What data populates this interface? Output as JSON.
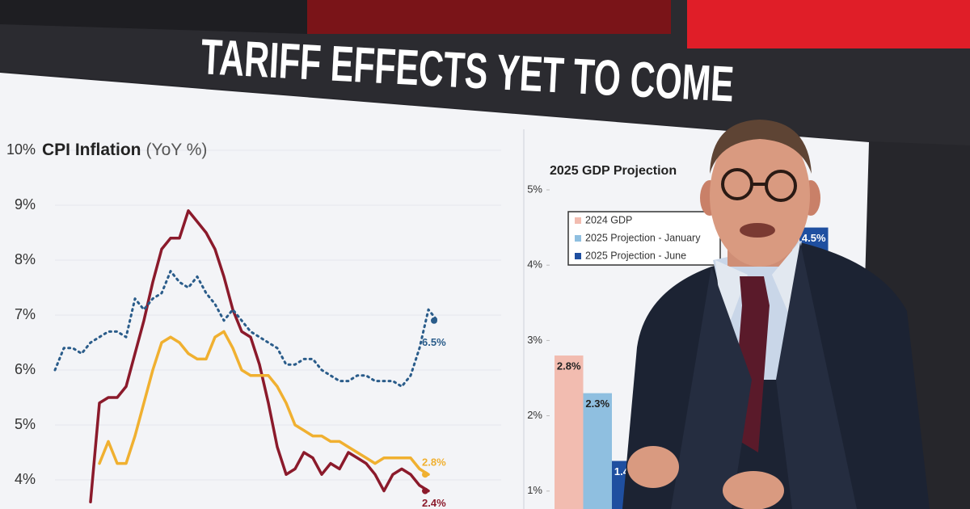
{
  "headline": "TARIFF EFFECTS YET TO COME",
  "chart_data": [
    {
      "type": "line",
      "title": "CPI Inflation",
      "subtitle": "(YoY %)",
      "categories": [
        null,
        null,
        null,
        null,
        null,
        null,
        null,
        null,
        null,
        null,
        null,
        null,
        null,
        null,
        null,
        null,
        null,
        null,
        null,
        null,
        null,
        null,
        null,
        null,
        null,
        null,
        null,
        null,
        null,
        null,
        null,
        null,
        null,
        null,
        null,
        null,
        null,
        null,
        null,
        null,
        null,
        null,
        null,
        null
      ],
      "series": [
        {
          "color": "#8b1a2b",
          "style": "solid",
          "values": [
            null,
            null,
            null,
            null,
            3.6,
            5.4,
            5.5,
            5.5,
            5.7,
            6.3,
            6.9,
            7.6,
            8.2,
            8.4,
            8.4,
            8.9,
            8.7,
            8.5,
            8.2,
            7.7,
            7.1,
            6.7,
            6.6,
            6.1,
            5.4,
            4.6,
            4.1,
            4.2,
            4.5,
            4.4,
            4.1,
            4.3,
            4.2,
            4.5,
            4.4,
            4.3,
            4.1,
            3.8,
            4.1,
            4.2,
            4.1,
            3.9,
            3.8,
            null
          ]
        },
        {
          "color": "#f0b030",
          "style": "solid",
          "values": [
            null,
            null,
            null,
            null,
            null,
            4.3,
            4.7,
            4.3,
            4.3,
            4.8,
            5.4,
            6.0,
            6.5,
            6.6,
            6.5,
            6.3,
            6.2,
            6.2,
            6.6,
            6.7,
            6.4,
            6.0,
            5.9,
            5.9,
            5.9,
            5.7,
            5.4,
            5.0,
            4.9,
            4.8,
            4.8,
            4.7,
            4.7,
            4.6,
            4.5,
            4.4,
            4.3,
            4.4,
            4.4,
            4.4,
            4.4,
            4.2,
            4.1,
            null
          ]
        },
        {
          "color": "#2a5c8a",
          "style": "dotted",
          "values": [
            6.0,
            6.4,
            6.4,
            6.3,
            6.5,
            6.6,
            6.7,
            6.7,
            6.6,
            7.3,
            7.1,
            7.3,
            7.4,
            7.8,
            7.6,
            7.5,
            7.7,
            7.4,
            7.2,
            6.9,
            7.1,
            6.9,
            6.7,
            6.6,
            6.5,
            6.4,
            6.1,
            6.1,
            6.2,
            6.2,
            6.0,
            5.9,
            5.8,
            5.8,
            5.9,
            5.9,
            5.8,
            5.8,
            5.8,
            5.7,
            5.9,
            6.4,
            7.1,
            6.9
          ]
        }
      ],
      "annotations": [
        {
          "text": "6.5%",
          "color": "#2a5c8a"
        },
        {
          "text": "2.8%",
          "color": "#f0b030"
        },
        {
          "text": "2.4%",
          "color": "#8b1a2b"
        }
      ],
      "ylim": [
        3.5,
        10.5
      ],
      "yticks": [
        {
          "value": 4,
          "label": "4%"
        },
        {
          "value": 5,
          "label": "5%"
        },
        {
          "value": 6,
          "label": "6%"
        },
        {
          "value": 7,
          "label": "7%"
        },
        {
          "value": 8,
          "label": "8%"
        },
        {
          "value": 9,
          "label": "9%"
        },
        {
          "value": 10,
          "label": "10%"
        }
      ],
      "grid": true
    },
    {
      "type": "bar",
      "title": "2025 GDP Projection",
      "categories": [
        null,
        null
      ],
      "series": [
        {
          "name": "2024 GDP",
          "color": "#f2bcb0",
          "values": [
            2.8,
            null
          ],
          "value_labels": [
            "2.8%",
            null
          ]
        },
        {
          "name": "2025 Projection - January",
          "color": "#8fbfe0",
          "values": [
            2.3,
            null
          ],
          "value_labels": [
            "2.3%",
            null
          ]
        },
        {
          "name": "2025 Projection - June",
          "color": "#1f4fa0",
          "values": [
            1.4,
            4.5
          ],
          "value_labels": [
            "1.4%",
            "4.5%"
          ]
        }
      ],
      "ylim": [
        0.75,
        5.3
      ],
      "yticks": [
        {
          "value": 1,
          "label": "1%"
        },
        {
          "value": 2,
          "label": "2%"
        },
        {
          "value": 3,
          "label": "3%"
        },
        {
          "value": 4,
          "label": "4%"
        },
        {
          "value": 5,
          "label": "5%"
        }
      ],
      "legend": "top-left"
    }
  ]
}
